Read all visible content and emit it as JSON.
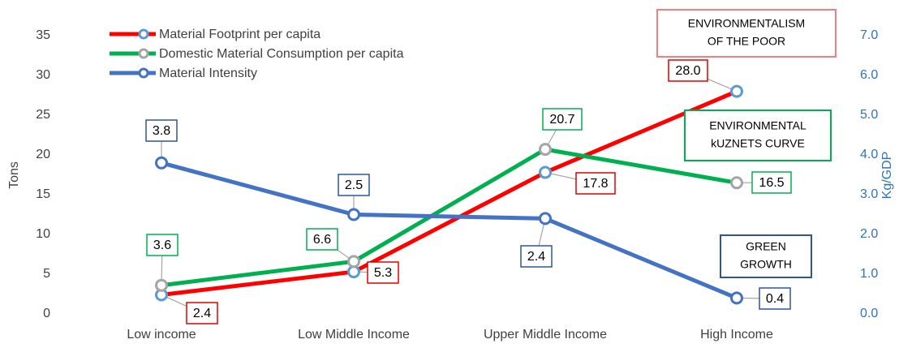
{
  "chart_data": {
    "type": "line",
    "categories": [
      "Low income",
      "Low Middle Income",
      "Upper Middle Income",
      "High Income"
    ],
    "series": [
      {
        "name": "Material Footprint per capita",
        "color": "#ff0000",
        "marker_color": "#5b9bd5",
        "values": [
          2.4,
          5.3,
          17.8,
          28.0
        ],
        "value_labels": [
          "2.4",
          "5.3",
          "17.8",
          "28.0"
        ]
      },
      {
        "name": "Domestic Material Consumption per capita",
        "color": "#00b050",
        "marker_color": "#a5a5a5",
        "values": [
          3.6,
          6.6,
          20.7,
          16.5
        ],
        "value_labels": [
          "3.6",
          "6.6",
          "20.7",
          "16.5"
        ]
      },
      {
        "name": "Material Intensity",
        "color": "#4472c4",
        "marker_color": "#4472c4",
        "axis": "y2",
        "values": [
          3.8,
          2.5,
          2.4,
          0.4
        ],
        "value_labels": [
          "3.8",
          "2.5",
          "2.4",
          "0.4"
        ]
      }
    ],
    "y_label": "Tons",
    "y2_label": "Kg/GDP",
    "ylim": [
      0,
      35
    ],
    "yticks": [
      0,
      5,
      10,
      15,
      20,
      25,
      30,
      35
    ],
    "y2lim": [
      0,
      7
    ],
    "y2ticks": [
      {
        "value": 0,
        "label": "0.0"
      },
      {
        "value": 1,
        "label": "1.0"
      },
      {
        "value": 2,
        "label": "2.0"
      },
      {
        "value": 3,
        "label": "3.0"
      },
      {
        "value": 4,
        "label": "4.0"
      },
      {
        "value": 5,
        "label": "5.0"
      },
      {
        "value": 6,
        "label": "6.0"
      },
      {
        "value": 7,
        "label": "7.0"
      }
    ],
    "legend": "top-left",
    "grid": false,
    "annotations": [
      {
        "lines": [
          "ENVIRONMENTALISM",
          "OF THE POOR"
        ],
        "color": "#f08080"
      },
      {
        "lines": [
          "ENVIRONMENTAL",
          "kUZNETS CURVE"
        ],
        "color": "#00b050"
      },
      {
        "lines": [
          "GREEN",
          "GROWTH"
        ],
        "color": "#2f5597"
      }
    ]
  }
}
